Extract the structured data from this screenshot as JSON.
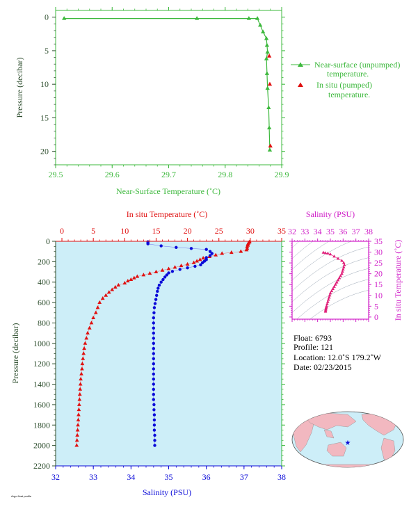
{
  "colors": {
    "green": "#3cb83c",
    "green_text": "#2e7a2e",
    "dark_green": "#2f4f2f",
    "red": "#e01010",
    "blue": "#0a0ad8",
    "magenta": "#d020c8",
    "pink": "#e0207a",
    "plot_bg": "#cdeef8"
  },
  "chart_data": [
    {
      "type": "line",
      "title": "",
      "xlabel": "Near-Surface Temperature (˚C)",
      "ylabel": "Pressure (decibar)",
      "xlim": [
        29.5,
        29.9
      ],
      "ylim": [
        22,
        -1
      ],
      "xticks": [
        "29.5",
        "29.6",
        "29.7",
        "29.8",
        "29.9"
      ],
      "yticks": [
        "0",
        "5",
        "10",
        "15",
        "20"
      ],
      "legend": {
        "placement": "right"
      },
      "series": [
        {
          "name": "Near-surface (unpumped) temperature.",
          "points": [
            [
              29.515,
              0.2
            ],
            [
              29.75,
              0.2
            ],
            [
              29.842,
              0.2
            ],
            [
              29.857,
              0.2
            ],
            [
              29.862,
              1.2
            ],
            [
              29.867,
              2.2
            ],
            [
              29.873,
              3.2
            ],
            [
              29.874,
              4.2
            ],
            [
              29.875,
              5.2
            ],
            [
              29.873,
              6.2
            ],
            [
              29.874,
              8.4
            ],
            [
              29.875,
              10.6
            ],
            [
              29.877,
              13.5
            ],
            [
              29.878,
              16.5
            ],
            [
              29.879,
              19.8
            ]
          ]
        },
        {
          "name": "In situ (pumped) temperature.",
          "points": [
            [
              29.878,
              5.8
            ],
            [
              29.879,
              10.0
            ],
            [
              29.88,
              19.2
            ]
          ]
        }
      ]
    },
    {
      "type": "scatter",
      "title": "",
      "ylabel": "Pressure (decibar)",
      "ylim": [
        2200,
        0
      ],
      "yticks": [
        "0",
        "200",
        "400",
        "600",
        "800",
        "1000",
        "1200",
        "1400",
        "1600",
        "1800",
        "2000",
        "2200"
      ],
      "top_axis": {
        "label": "In situ Temperature (˚C)",
        "range": [
          -1,
          35
        ],
        "ticks": [
          "0",
          "5",
          "10",
          "15",
          "20",
          "25",
          "30",
          "35"
        ]
      },
      "bottom_axis": {
        "label": "Salinity (PSU)",
        "range": [
          32,
          38
        ],
        "ticks": [
          "32",
          "33",
          "34",
          "35",
          "36",
          "37",
          "38"
        ]
      },
      "series": [
        {
          "name": "In situ Temperature (˚C)",
          "points": [
            [
              29.9,
              5
            ],
            [
              29.8,
              10
            ],
            [
              29.7,
              20
            ],
            [
              29.6,
              30
            ],
            [
              29.6,
              40
            ],
            [
              29.5,
              55
            ],
            [
              29.5,
              70
            ],
            [
              29.4,
              85
            ],
            [
              28.5,
              100
            ],
            [
              27.0,
              110
            ],
            [
              25.5,
              120
            ],
            [
              24.5,
              135
            ],
            [
              23.5,
              150
            ],
            [
              22.5,
              165
            ],
            [
              22.0,
              180
            ],
            [
              21.5,
              195
            ],
            [
              21.0,
              210
            ],
            [
              20.0,
              225
            ],
            [
              19.0,
              240
            ],
            [
              18.0,
              255
            ],
            [
              17.0,
              270
            ],
            [
              16.0,
              285
            ],
            [
              15.0,
              300
            ],
            [
              14.0,
              315
            ],
            [
              13.0,
              330
            ],
            [
              12.0,
              345
            ],
            [
              11.5,
              360
            ],
            [
              11.0,
              375
            ],
            [
              10.5,
              390
            ],
            [
              10.0,
              410
            ],
            [
              9.0,
              430
            ],
            [
              8.5,
              450
            ],
            [
              8.0,
              475
            ],
            [
              7.5,
              500
            ],
            [
              7.0,
              530
            ],
            [
              6.5,
              560
            ],
            [
              6.0,
              600
            ],
            [
              5.7,
              650
            ],
            [
              5.4,
              700
            ],
            [
              5.0,
              750
            ],
            [
              4.7,
              800
            ],
            [
              4.4,
              850
            ],
            [
              4.1,
              900
            ],
            [
              3.9,
              950
            ],
            [
              3.7,
              1000
            ],
            [
              3.55,
              1050
            ],
            [
              3.45,
              1100
            ],
            [
              3.35,
              1150
            ],
            [
              3.25,
              1200
            ],
            [
              3.2,
              1250
            ],
            [
              3.1,
              1300
            ],
            [
              3.0,
              1350
            ],
            [
              2.95,
              1400
            ],
            [
              2.9,
              1450
            ],
            [
              2.85,
              1500
            ],
            [
              2.8,
              1550
            ],
            [
              2.75,
              1600
            ],
            [
              2.7,
              1650
            ],
            [
              2.65,
              1700
            ],
            [
              2.6,
              1750
            ],
            [
              2.55,
              1800
            ],
            [
              2.5,
              1850
            ],
            [
              2.45,
              1900
            ],
            [
              2.4,
              1950
            ],
            [
              2.35,
              2000
            ]
          ]
        },
        {
          "name": "Salinity (PSU)",
          "points": [
            [
              34.45,
              5
            ],
            [
              34.45,
              15
            ],
            [
              34.45,
              25
            ],
            [
              34.8,
              45
            ],
            [
              35.2,
              60
            ],
            [
              35.6,
              70
            ],
            [
              36.0,
              80
            ],
            [
              36.1,
              100
            ],
            [
              36.15,
              120
            ],
            [
              36.1,
              140
            ],
            [
              36.0,
              160
            ],
            [
              36.0,
              180
            ],
            [
              35.95,
              195
            ],
            [
              35.9,
              210
            ],
            [
              35.85,
              230
            ],
            [
              35.7,
              245
            ],
            [
              35.5,
              260
            ],
            [
              35.3,
              275
            ],
            [
              35.1,
              295
            ],
            [
              35.0,
              310
            ],
            [
              34.95,
              330
            ],
            [
              34.9,
              350
            ],
            [
              34.85,
              375
            ],
            [
              34.8,
              400
            ],
            [
              34.75,
              430
            ],
            [
              34.72,
              460
            ],
            [
              34.7,
              490
            ],
            [
              34.68,
              530
            ],
            [
              34.66,
              570
            ],
            [
              34.64,
              610
            ],
            [
              34.62,
              650
            ],
            [
              34.61,
              700
            ],
            [
              34.6,
              750
            ],
            [
              34.6,
              800
            ],
            [
              34.6,
              850
            ],
            [
              34.6,
              900
            ],
            [
              34.6,
              950
            ],
            [
              34.6,
              1000
            ],
            [
              34.6,
              1050
            ],
            [
              34.6,
              1100
            ],
            [
              34.6,
              1150
            ],
            [
              34.6,
              1200
            ],
            [
              34.6,
              1250
            ],
            [
              34.6,
              1300
            ],
            [
              34.6,
              1350
            ],
            [
              34.6,
              1400
            ],
            [
              34.6,
              1450
            ],
            [
              34.6,
              1500
            ],
            [
              34.6,
              1550
            ],
            [
              34.61,
              1600
            ],
            [
              34.61,
              1650
            ],
            [
              34.62,
              1700
            ],
            [
              34.62,
              1750
            ],
            [
              34.62,
              1800
            ],
            [
              34.62,
              1850
            ],
            [
              34.63,
              1900
            ],
            [
              34.63,
              1950
            ],
            [
              34.63,
              2000
            ]
          ]
        }
      ]
    },
    {
      "type": "scatter",
      "title": "",
      "xlabel": "Salinity (PSU)",
      "ylabel": "In situ Temperature (˚C)",
      "xlim": [
        32,
        38
      ],
      "ylim": [
        -1,
        35
      ],
      "xticks": [
        "32",
        "33",
        "34",
        "35",
        "36",
        "37",
        "38"
      ],
      "yticks": [
        "0",
        "5",
        "10",
        "15",
        "20",
        "25",
        "30",
        "35"
      ],
      "points": [
        [
          34.45,
          29.8
        ],
        [
          34.6,
          29.6
        ],
        [
          34.8,
          29.4
        ],
        [
          35.0,
          29.0
        ],
        [
          35.3,
          28.0
        ],
        [
          35.6,
          27.0
        ],
        [
          35.9,
          26.0
        ],
        [
          36.05,
          25.0
        ],
        [
          36.1,
          24.0
        ],
        [
          36.05,
          23.0
        ],
        [
          36.0,
          22.0
        ],
        [
          35.95,
          21.0
        ],
        [
          35.9,
          20.0
        ],
        [
          35.8,
          19.0
        ],
        [
          35.7,
          18.0
        ],
        [
          35.6,
          17.0
        ],
        [
          35.5,
          16.0
        ],
        [
          35.4,
          15.0
        ],
        [
          35.3,
          14.0
        ],
        [
          35.2,
          13.0
        ],
        [
          35.1,
          12.0
        ],
        [
          35.0,
          11.0
        ],
        [
          34.95,
          10.0
        ],
        [
          34.9,
          9.0
        ],
        [
          34.85,
          8.0
        ],
        [
          34.8,
          7.0
        ],
        [
          34.75,
          6.0
        ],
        [
          34.7,
          5.0
        ],
        [
          34.68,
          4.5
        ],
        [
          34.66,
          4.0
        ],
        [
          34.64,
          3.5
        ],
        [
          34.63,
          3.0
        ],
        [
          34.62,
          2.5
        ]
      ]
    }
  ],
  "info": {
    "float": "Float:  6793",
    "profile": "Profile:  121",
    "location": "Location:  12.0˚S  179.2˚W",
    "date": "Date:  02/23/2015"
  },
  "map": {
    "float_position": "12.0˚S 179.2˚W"
  },
  "footer_mark": "Argo float profile"
}
